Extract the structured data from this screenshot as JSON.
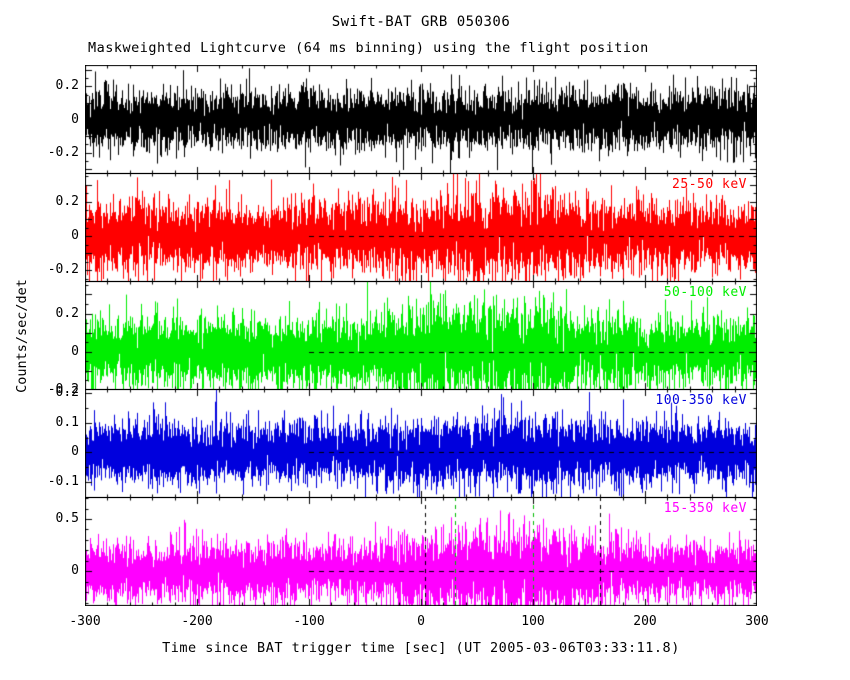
{
  "chart_data": {
    "type": "line",
    "title": "Swift-BAT GRB 050306",
    "subtitle": "Maskweighted Lightcurve (64 ms binning) using the flight position",
    "xlabel": "Time since BAT trigger time [sec] (UT 2005-03-06T03:33:11.8)",
    "ylabel": "Counts/sec/det",
    "x_range": [
      -300,
      300
    ],
    "x_ticks": [
      -300,
      -200,
      -100,
      0,
      100,
      200,
      300
    ],
    "x_major_step": 100,
    "x_minor_step": 20,
    "zero_line": {
      "dash": true,
      "x_start": -100,
      "x_end": 300
    },
    "panels": [
      {
        "label": "",
        "color": "#000000",
        "ylim": [
          -0.33,
          0.33
        ],
        "yticks": [
          -0.2,
          0,
          0.2
        ],
        "y_major_step": 0.1,
        "y_minor_step": 0.05,
        "noise_sigma": 0.085,
        "zero_dash": false,
        "bumps": []
      },
      {
        "label": "25-50 keV",
        "color": "#ff0000",
        "ylim": [
          -0.27,
          0.37
        ],
        "yticks": [
          -0.2,
          0,
          0.2
        ],
        "y_major_step": 0.1,
        "y_minor_step": 0.05,
        "noise_sigma": 0.095,
        "zero_dash": true,
        "bumps": [
          {
            "center": 20,
            "width": 45,
            "amp": 0.15
          },
          {
            "center": 95,
            "width": 40,
            "amp": 0.3
          }
        ]
      },
      {
        "label": "50-100 keV",
        "color": "#00ee00",
        "ylim": [
          -0.2,
          0.37
        ],
        "yticks": [
          -0.2,
          0,
          0.2
        ],
        "y_major_step": 0.1,
        "y_minor_step": 0.05,
        "noise_sigma": 0.085,
        "zero_dash": true,
        "bumps": [
          {
            "center": 20,
            "width": 45,
            "amp": 0.3
          },
          {
            "center": 95,
            "width": 40,
            "amp": 0.55
          }
        ]
      },
      {
        "label": "100-350 keV",
        "color": "#0000dd",
        "ylim": [
          -0.155,
          0.215
        ],
        "yticks": [
          -0.1,
          0,
          0.1,
          0.2
        ],
        "y_major_step": 0.1,
        "y_minor_step": 0.05,
        "noise_sigma": 0.05,
        "zero_dash": true,
        "bumps": [
          {
            "center": 95,
            "width": 50,
            "amp": 0.25
          }
        ]
      },
      {
        "label": "15-350 keV",
        "color": "#ff00ff",
        "ylim": [
          -0.33,
          0.71
        ],
        "yticks": [
          0,
          0.5
        ],
        "y_major_step": 0.5,
        "y_minor_step": 0.1,
        "noise_sigma": 0.13,
        "zero_dash": true,
        "has_vlines": true,
        "bumps": [
          {
            "center": 20,
            "width": 45,
            "amp": 0.3
          },
          {
            "center": 100,
            "width": 45,
            "amp": 0.6
          }
        ]
      }
    ],
    "vlines": [
      {
        "t": 4,
        "color": "#000000"
      },
      {
        "t": 30,
        "color": "#00bb00"
      },
      {
        "t": 100,
        "color": "#00bb00"
      },
      {
        "t": 160,
        "color": "#000000"
      }
    ]
  }
}
